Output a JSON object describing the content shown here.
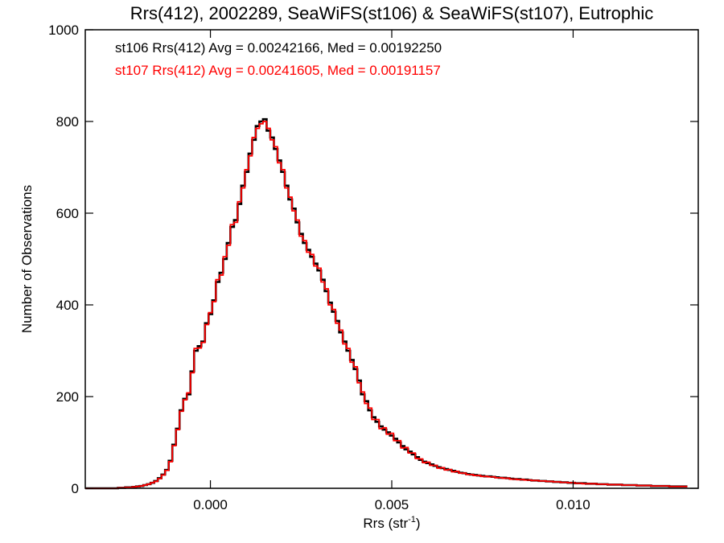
{
  "chart_data": {
    "type": "histogram",
    "title": "Rrs(412), 2002289, SeaWiFS(st106) & SeaWiFS(st107), Eutrophic",
    "xlabel": {
      "main": "Rrs (str",
      "sup": "-1",
      "close": ")"
    },
    "ylabel": "Number of Observations",
    "xlim": [
      -0.00345,
      0.01345
    ],
    "ylim": [
      0,
      1000
    ],
    "x_ticks": [
      {
        "value": 0.0,
        "label": "0.000"
      },
      {
        "value": 0.005,
        "label": "0.005"
      },
      {
        "value": 0.01,
        "label": "0.010"
      }
    ],
    "y_ticks": [
      {
        "value": 0,
        "label": "0"
      },
      {
        "value": 200,
        "label": "200"
      },
      {
        "value": 400,
        "label": "400"
      },
      {
        "value": 600,
        "label": "600"
      },
      {
        "value": 800,
        "label": "800"
      },
      {
        "value": 1000,
        "label": "1000"
      }
    ],
    "bin_width": 0.0001,
    "x_start": -0.00345,
    "annotations": [
      {
        "text": "st106 Rrs(412) Avg = 0.00242166, Med = 0.00192250",
        "color": "#000000"
      },
      {
        "text": "st107 Rrs(412) Avg = 0.00241605, Med = 0.00191157",
        "color": "#ff0000"
      }
    ],
    "series": [
      {
        "name": "st106",
        "color": "#000000",
        "values": [
          0,
          0,
          0,
          0,
          0,
          0,
          0,
          0,
          0,
          1,
          1,
          2,
          2,
          3,
          4,
          5,
          7,
          9,
          12,
          16,
          22,
          30,
          40,
          60,
          95,
          130,
          170,
          195,
          205,
          255,
          300,
          310,
          320,
          360,
          380,
          410,
          450,
          470,
          500,
          535,
          570,
          585,
          620,
          660,
          690,
          730,
          760,
          790,
          800,
          805,
          780,
          765,
          740,
          715,
          690,
          660,
          630,
          610,
          580,
          555,
          535,
          520,
          505,
          490,
          475,
          455,
          430,
          405,
          385,
          365,
          340,
          320,
          300,
          280,
          260,
          235,
          205,
          190,
          170,
          155,
          145,
          135,
          128,
          122,
          115,
          108,
          100,
          92,
          85,
          80,
          74,
          68,
          62,
          58,
          55,
          52,
          49,
          46,
          44,
          42,
          40,
          38,
          36,
          34,
          33,
          31,
          30,
          29,
          28,
          27,
          26,
          26,
          25,
          24,
          23,
          23,
          22,
          21,
          20,
          20,
          19,
          19,
          18,
          17,
          17,
          16,
          16,
          15,
          15,
          14,
          14,
          13,
          13,
          12,
          12,
          11,
          11,
          11,
          10,
          10,
          10,
          9,
          9,
          9,
          8,
          8,
          8,
          8,
          7,
          7,
          7,
          7,
          6,
          6,
          6,
          6,
          5,
          5,
          5,
          5,
          5,
          4,
          4,
          4,
          4,
          4
        ]
      },
      {
        "name": "st107",
        "color": "#ff0000",
        "values": [
          0,
          0,
          0,
          0,
          0,
          0,
          0,
          0,
          0,
          1,
          1,
          2,
          2,
          3,
          4,
          5,
          7,
          9,
          12,
          15,
          21,
          29,
          39,
          58,
          93,
          128,
          168,
          193,
          208,
          252,
          305,
          306,
          318,
          357,
          383,
          407,
          455,
          465,
          505,
          530,
          575,
          580,
          625,
          655,
          695,
          725,
          765,
          785,
          795,
          800,
          785,
          760,
          745,
          710,
          695,
          655,
          635,
          605,
          585,
          550,
          540,
          515,
          510,
          485,
          480,
          450,
          435,
          400,
          390,
          360,
          345,
          315,
          305,
          275,
          265,
          230,
          210,
          185,
          175,
          150,
          150,
          130,
          132,
          118,
          120,
          104,
          104,
          88,
          89,
          77,
          77,
          65,
          64,
          56,
          57,
          50,
          50,
          44,
          45,
          40,
          41,
          36,
          37,
          33,
          33,
          30,
          30,
          28,
          28,
          26,
          26,
          25,
          25,
          23,
          23,
          22,
          22,
          20,
          20,
          19,
          19,
          18,
          18,
          17,
          17,
          16,
          16,
          15,
          15,
          14,
          14,
          13,
          13,
          12,
          12,
          11,
          11,
          10,
          10,
          10,
          10,
          9,
          9,
          9,
          8,
          8,
          8,
          8,
          7,
          7,
          7,
          7,
          6,
          6,
          6,
          6,
          5,
          5,
          5,
          5,
          5,
          4,
          4,
          4,
          4,
          4
        ]
      }
    ]
  }
}
